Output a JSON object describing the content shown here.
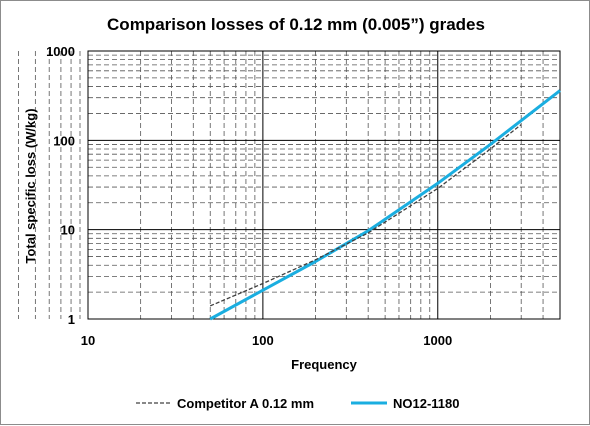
{
  "chart_data": {
    "type": "line",
    "title": "Comparison losses of 0.12 mm (0.005”) grades",
    "xlabel": "Frequency",
    "ylabel": "Total specific loss (W/kg)",
    "x_scale": "log",
    "y_scale": "log",
    "xlim": [
      10,
      5000
    ],
    "ylim": [
      1,
      1000
    ],
    "x_ticks": [
      "10",
      "100",
      "1000"
    ],
    "y_ticks": [
      "1",
      "10",
      "100",
      "1000"
    ],
    "grid": true,
    "legend_position": "bottom",
    "series": [
      {
        "name": "Competitor A 0.12 mm",
        "color": "#404040",
        "style": "dashed",
        "x": [
          50,
          100,
          200,
          400,
          1000,
          2000,
          3000
        ],
        "y": [
          1.4,
          2.5,
          4.6,
          9.2,
          29,
          80,
          150
        ]
      },
      {
        "name": "NO12-1180",
        "color": "#1aaee0",
        "style": "solid",
        "x": [
          50,
          100,
          200,
          400,
          1000,
          2000,
          5000
        ],
        "y": [
          1.0,
          2.1,
          4.4,
          9.7,
          33,
          90,
          360
        ]
      }
    ]
  }
}
